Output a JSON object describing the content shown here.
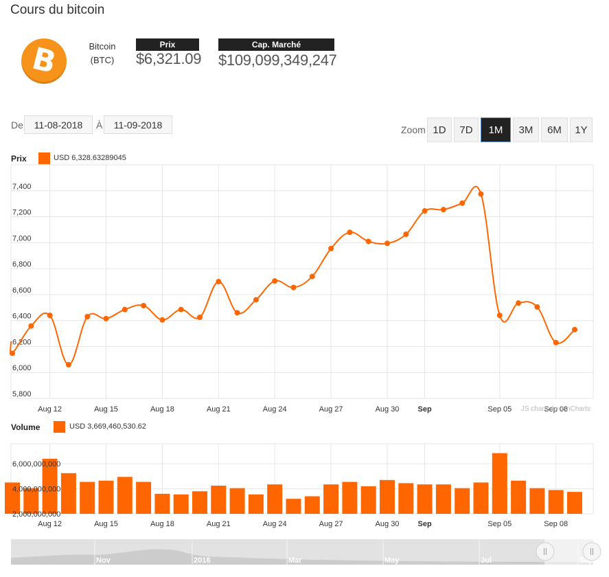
{
  "title": "Cours du bitcoin",
  "coin": {
    "name": "Bitcoin",
    "symbol": "(BTC)",
    "logo_glyph": "B"
  },
  "kpis": {
    "price_label": "Prix",
    "price_value": "$6,321.09",
    "marketcap_label": "Cap. Marché",
    "marketcap_value": "$109,099,349,247"
  },
  "range": {
    "from_label": "De",
    "from": "11-08-2018",
    "to_label": "À",
    "to": "11-09-2018"
  },
  "zoom": {
    "label": "Zoom",
    "buttons": [
      "1D",
      "7D",
      "1M",
      "3M",
      "6M",
      "1Y"
    ],
    "active": "1M"
  },
  "colors": {
    "accent": "#ff6600",
    "bitcoin": "#f7931a"
  },
  "watermark": "JS charts by amCharts",
  "chart_data": [
    {
      "type": "line",
      "name": "price",
      "title": "Prix",
      "legend": "USD 6,328.63289045",
      "ylim": [
        5800,
        7600
      ],
      "yticks": [
        5800,
        6000,
        6200,
        6400,
        6600,
        6800,
        7000,
        7200,
        7400
      ],
      "ytick_labels": [
        "5,800",
        "6,000",
        "6,200",
        "6,400",
        "6,600",
        "6,800",
        "7,000",
        "7,200",
        "7,400"
      ],
      "x_start": "2018-08-10",
      "xtick_labels": [
        "Aug 12",
        "Aug 15",
        "Aug 18",
        "Aug 21",
        "Aug 24",
        "Aug 27",
        "Aug 30",
        "Sep",
        "Sep 05",
        "Sep 08"
      ],
      "xtick_dates": [
        "2018-08-12",
        "2018-08-15",
        "2018-08-18",
        "2018-08-21",
        "2018-08-24",
        "2018-08-27",
        "2018-08-30",
        "2018-09-01",
        "2018-09-05",
        "2018-09-08"
      ],
      "grid": true,
      "series": [
        {
          "x": [
            "2018-08-10",
            "2018-08-11",
            "2018-08-12",
            "2018-08-13",
            "2018-08-14",
            "2018-08-15",
            "2018-08-16",
            "2018-08-17",
            "2018-08-18",
            "2018-08-19",
            "2018-08-20",
            "2018-08-21",
            "2018-08-22",
            "2018-08-23",
            "2018-08-24",
            "2018-08-25",
            "2018-08-26",
            "2018-08-27",
            "2018-08-28",
            "2018-08-29",
            "2018-08-30",
            "2018-08-31",
            "2018-09-01",
            "2018-09-02",
            "2018-09-03",
            "2018-09-04",
            "2018-09-05",
            "2018-09-06",
            "2018-09-07",
            "2018-09-08",
            "2018-09-09"
          ],
          "y": [
            6148,
            6358,
            6440,
            6060,
            6430,
            6415,
            6485,
            6515,
            6405,
            6485,
            6425,
            6700,
            6460,
            6560,
            6705,
            6655,
            6740,
            6955,
            7080,
            7010,
            6995,
            7065,
            7245,
            7255,
            7305,
            7375,
            6440,
            6535,
            6505,
            6230,
            6330
          ]
        }
      ]
    },
    {
      "type": "bar",
      "name": "volume",
      "title": "Volume",
      "legend": "USD 3,669,460,530.62",
      "ylim": [
        2000000000,
        7600000000
      ],
      "ytick_labels": [
        "2,000,000,000",
        "4,000,000,000",
        "6,000,000,000"
      ],
      "yticks": [
        2000000000,
        4000000000,
        6000000000
      ],
      "categories": [
        "2018-08-10",
        "2018-08-11",
        "2018-08-12",
        "2018-08-13",
        "2018-08-14",
        "2018-08-15",
        "2018-08-16",
        "2018-08-17",
        "2018-08-18",
        "2018-08-19",
        "2018-08-20",
        "2018-08-21",
        "2018-08-22",
        "2018-08-23",
        "2018-08-24",
        "2018-08-25",
        "2018-08-26",
        "2018-08-27",
        "2018-08-28",
        "2018-08-29",
        "2018-08-30",
        "2018-08-31",
        "2018-09-01",
        "2018-09-02",
        "2018-09-03",
        "2018-09-04",
        "2018-09-05",
        "2018-09-06",
        "2018-09-07",
        "2018-09-08",
        "2018-09-09"
      ],
      "values": [
        4500000000,
        4050000000,
        6400000000,
        5250000000,
        4550000000,
        4650000000,
        4950000000,
        4550000000,
        3600000000,
        3550000000,
        3800000000,
        4250000000,
        4050000000,
        3550000000,
        4350000000,
        3200000000,
        3400000000,
        4350000000,
        4550000000,
        4200000000,
        4700000000,
        4450000000,
        4350000000,
        4350000000,
        4050000000,
        4500000000,
        6850000000,
        4650000000,
        4050000000,
        3900000000,
        3750000000
      ]
    },
    {
      "type": "area",
      "name": "navigator",
      "tick_labels": [
        "Nov",
        "2018",
        "Mar",
        "May",
        "Jul",
        "Sep"
      ]
    }
  ]
}
